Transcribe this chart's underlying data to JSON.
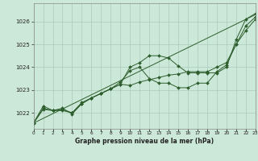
{
  "background_color": "#cce8d8",
  "plot_bg_color": "#cce8d8",
  "grid_color": "#aaccbb",
  "line_color": "#2d5e2d",
  "xlabel": "Graphe pression niveau de la mer (hPa)",
  "ylim": [
    1021.3,
    1026.8
  ],
  "xlim": [
    0,
    23
  ],
  "yticks": [
    1022,
    1023,
    1024,
    1025,
    1026
  ],
  "xticks": [
    0,
    1,
    2,
    3,
    4,
    5,
    6,
    7,
    8,
    9,
    10,
    11,
    12,
    13,
    14,
    15,
    16,
    17,
    18,
    19,
    20,
    21,
    22,
    23
  ],
  "line1_x": [
    0,
    1,
    2,
    3,
    4,
    5,
    6,
    7,
    8,
    9,
    10,
    11,
    12,
    13,
    14,
    15,
    16,
    17,
    18,
    19,
    20,
    21,
    22,
    23
  ],
  "line1_y": [
    1021.55,
    1022.3,
    1022.1,
    1022.15,
    1022.0,
    1022.4,
    1022.65,
    1022.85,
    1023.05,
    1023.25,
    1024.0,
    1024.2,
    1024.5,
    1024.5,
    1024.4,
    1024.05,
    1023.75,
    1023.75,
    1023.75,
    1023.75,
    1024.0,
    1025.2,
    1026.1,
    1026.35
  ],
  "line2_x": [
    0,
    1,
    2,
    3,
    4,
    5,
    6,
    7,
    8,
    9,
    10,
    11,
    12,
    13,
    14,
    15,
    16,
    17,
    18,
    19,
    20,
    21,
    22,
    23
  ],
  "line2_y": [
    1021.55,
    1022.15,
    1022.1,
    1022.2,
    1021.95,
    1022.4,
    1022.65,
    1022.85,
    1023.05,
    1023.35,
    1023.85,
    1024.0,
    1023.5,
    1023.3,
    1023.3,
    1023.1,
    1023.1,
    1023.3,
    1023.3,
    1023.8,
    1024.1,
    1025.0,
    1025.8,
    1026.2
  ],
  "line3_x": [
    0,
    1,
    2,
    3,
    4,
    5,
    6,
    7,
    8,
    9,
    10,
    11,
    12,
    13,
    14,
    15,
    16,
    17,
    18,
    19,
    20,
    21,
    22,
    23
  ],
  "line3_y": [
    1021.55,
    1022.2,
    1022.1,
    1022.1,
    1022.0,
    1022.45,
    1022.65,
    1022.85,
    1023.05,
    1023.25,
    1023.2,
    1023.35,
    1023.45,
    1023.55,
    1023.65,
    1023.7,
    1023.8,
    1023.8,
    1023.8,
    1024.0,
    1024.2,
    1025.0,
    1025.6,
    1026.1
  ],
  "line4_x": [
    0,
    23
  ],
  "line4_y": [
    1021.55,
    1026.3
  ]
}
